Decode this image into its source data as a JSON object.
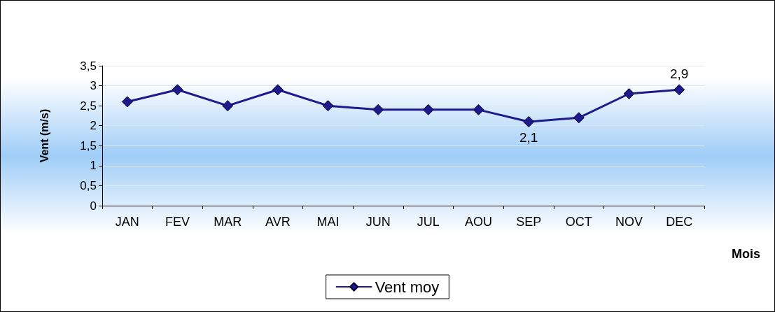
{
  "chart_data": {
    "type": "line",
    "ylabel": "Vent (m/s)",
    "xlabel": "Mois",
    "categories": [
      "JAN",
      "FEV",
      "MAR",
      "AVR",
      "MAI",
      "JUN",
      "JUL",
      "AOU",
      "SEP",
      "OCT",
      "NOV",
      "DEC"
    ],
    "series": [
      {
        "name": "Vent moy",
        "color": "#1f1a8c",
        "values": [
          2.6,
          2.9,
          2.5,
          2.9,
          2.5,
          2.4,
          2.4,
          2.4,
          2.1,
          2.2,
          2.8,
          2.9
        ],
        "value_labels": [
          null,
          null,
          null,
          null,
          null,
          null,
          null,
          null,
          "2,1",
          null,
          null,
          "2,9"
        ]
      }
    ],
    "ylim": [
      0,
      3.5
    ],
    "yticks": [
      0,
      {
        "value": 0.5,
        "label": "0,5"
      },
      1,
      {
        "value": 1.5,
        "label": "1,5"
      },
      2,
      {
        "value": 2.5,
        "label": "2,5"
      },
      3,
      {
        "value": 3.5,
        "label": "3,5"
      }
    ],
    "grid": "y",
    "legend": "bottom",
    "marker": "diamond",
    "line_style": "solid"
  }
}
